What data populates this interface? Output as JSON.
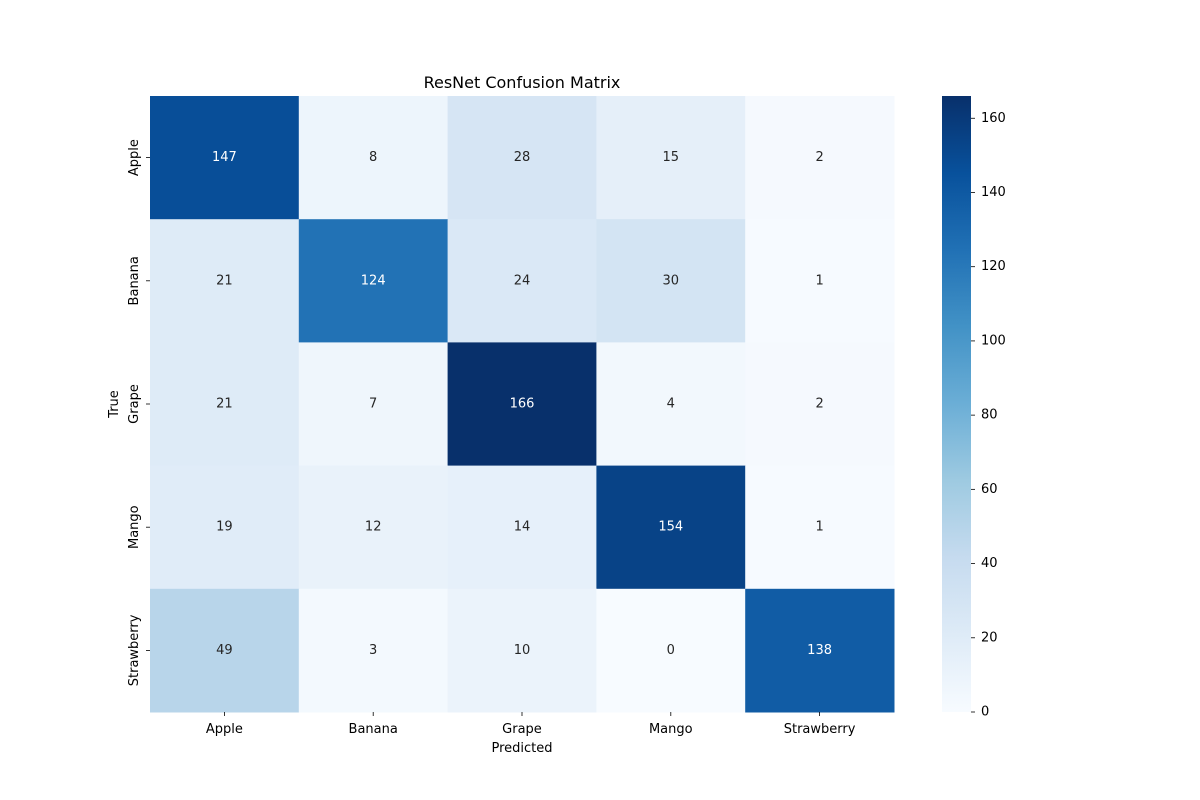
{
  "chart_data": {
    "type": "heatmap",
    "title": "ResNet Confusion Matrix",
    "xlabel": "Predicted",
    "ylabel": "True",
    "x_categories": [
      "Apple",
      "Banana",
      "Grape",
      "Mango",
      "Strawberry"
    ],
    "y_categories": [
      "Apple",
      "Banana",
      "Grape",
      "Mango",
      "Strawberry"
    ],
    "values": [
      [
        147,
        8,
        28,
        15,
        2
      ],
      [
        21,
        124,
        24,
        30,
        1
      ],
      [
        21,
        7,
        166,
        4,
        2
      ],
      [
        19,
        12,
        14,
        154,
        1
      ],
      [
        49,
        3,
        10,
        0,
        138
      ]
    ],
    "colormap": "Blues",
    "color_range": [
      0,
      166
    ],
    "colorbar_ticks": [
      0,
      20,
      40,
      60,
      80,
      100,
      120,
      140,
      160
    ],
    "grid": false
  }
}
